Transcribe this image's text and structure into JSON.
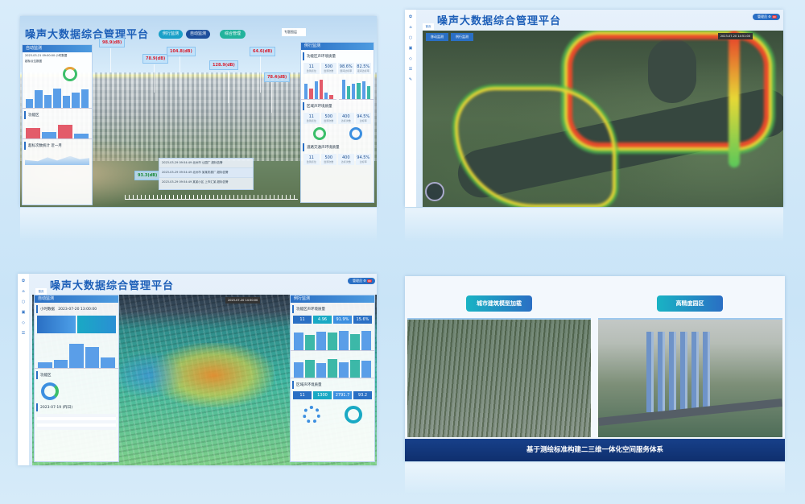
{
  "platform_title": "噪声大数据综合管理平台",
  "shot1": {
    "nav": [
      "例行监测",
      "自动监测",
      "综合管理"
    ],
    "select": "专题图层",
    "left_panel": {
      "title": "自动监测",
      "time": "2023-03-21 09:00:00 小时数据",
      "sub": "超标点位数据",
      "section2": "功能区",
      "section3": "超标次数统计 近一月"
    },
    "right_panel": {
      "title": "例行监测",
      "sections": [
        "功能区声环境质量",
        "区域声环境质量",
        "道路交通声环境质量"
      ],
      "stats1": [
        {
          "v": "11",
          "l": "监测点位"
        },
        {
          "v": "500",
          "l": "监测次数"
        },
        {
          "v": "98.6%",
          "l": "昼间达标率"
        },
        {
          "v": "82.5%",
          "l": "夜间达标率"
        }
      ],
      "stats2": [
        {
          "v": "11",
          "l": "监测点位"
        },
        {
          "v": "500",
          "l": "监测次数"
        },
        {
          "v": "400",
          "l": "达标次数"
        },
        {
          "v": "94.5%",
          "l": "达标率"
        }
      ],
      "stats3": [
        {
          "v": "11",
          "l": "监测点位"
        },
        {
          "v": "500",
          "l": "监测次数"
        },
        {
          "v": "400",
          "l": "达标次数"
        },
        {
          "v": "94.5%",
          "l": "达标率"
        }
      ]
    },
    "noise_tags": [
      "98.9(dB)",
      "78.9(dB)",
      "104.8(dB)",
      "128.9(dB)",
      "64.6(dB)",
      "78.4(dB)",
      "93.3(dB)"
    ],
    "alerts": [
      "2023-03-29 09:54:49 北州市 公园广 超标告警",
      "2023-03-29 09:54:49 北州市 某某机械厂 超标告警",
      "2023-03-29 09:54:49 某某小区 上市汇某 超标告警"
    ]
  },
  "shot2": {
    "tabs": [
      "首页"
    ],
    "map_tabs": [
      "移动监测",
      "例行监测"
    ],
    "datetime": "2023-07-20 14:51:00",
    "user": "管理员",
    "badge": "99"
  },
  "shot3": {
    "tab": "首页",
    "datetime": "2023-07-20 14:50:00",
    "user": "管理员",
    "badge": "99",
    "left_panel": {
      "title": "自动监测",
      "row": "小时数据",
      "time": "2023-07-20 13:00:00",
      "section": "功能区",
      "time2": "2023-07-19 (昨日)"
    },
    "right_panel": {
      "title": "例行监测",
      "section1": "功能区声环境质量",
      "stats1": [
        "11",
        "4.96",
        "91.9%",
        "15.6%"
      ],
      "section2": "区域声环境质量",
      "stats2": [
        "11",
        "1300",
        "2791.7",
        "93.2"
      ]
    }
  },
  "shot4": {
    "buttons": [
      "城市建筑模型加载",
      "高精度园区"
    ],
    "caption": "基于测绘标准构建二三维一体化空间服务体系"
  },
  "colors": {
    "brand": "#1d5fb8",
    "alert": "#d92030",
    "caption_bg": "#0f2f6e"
  }
}
